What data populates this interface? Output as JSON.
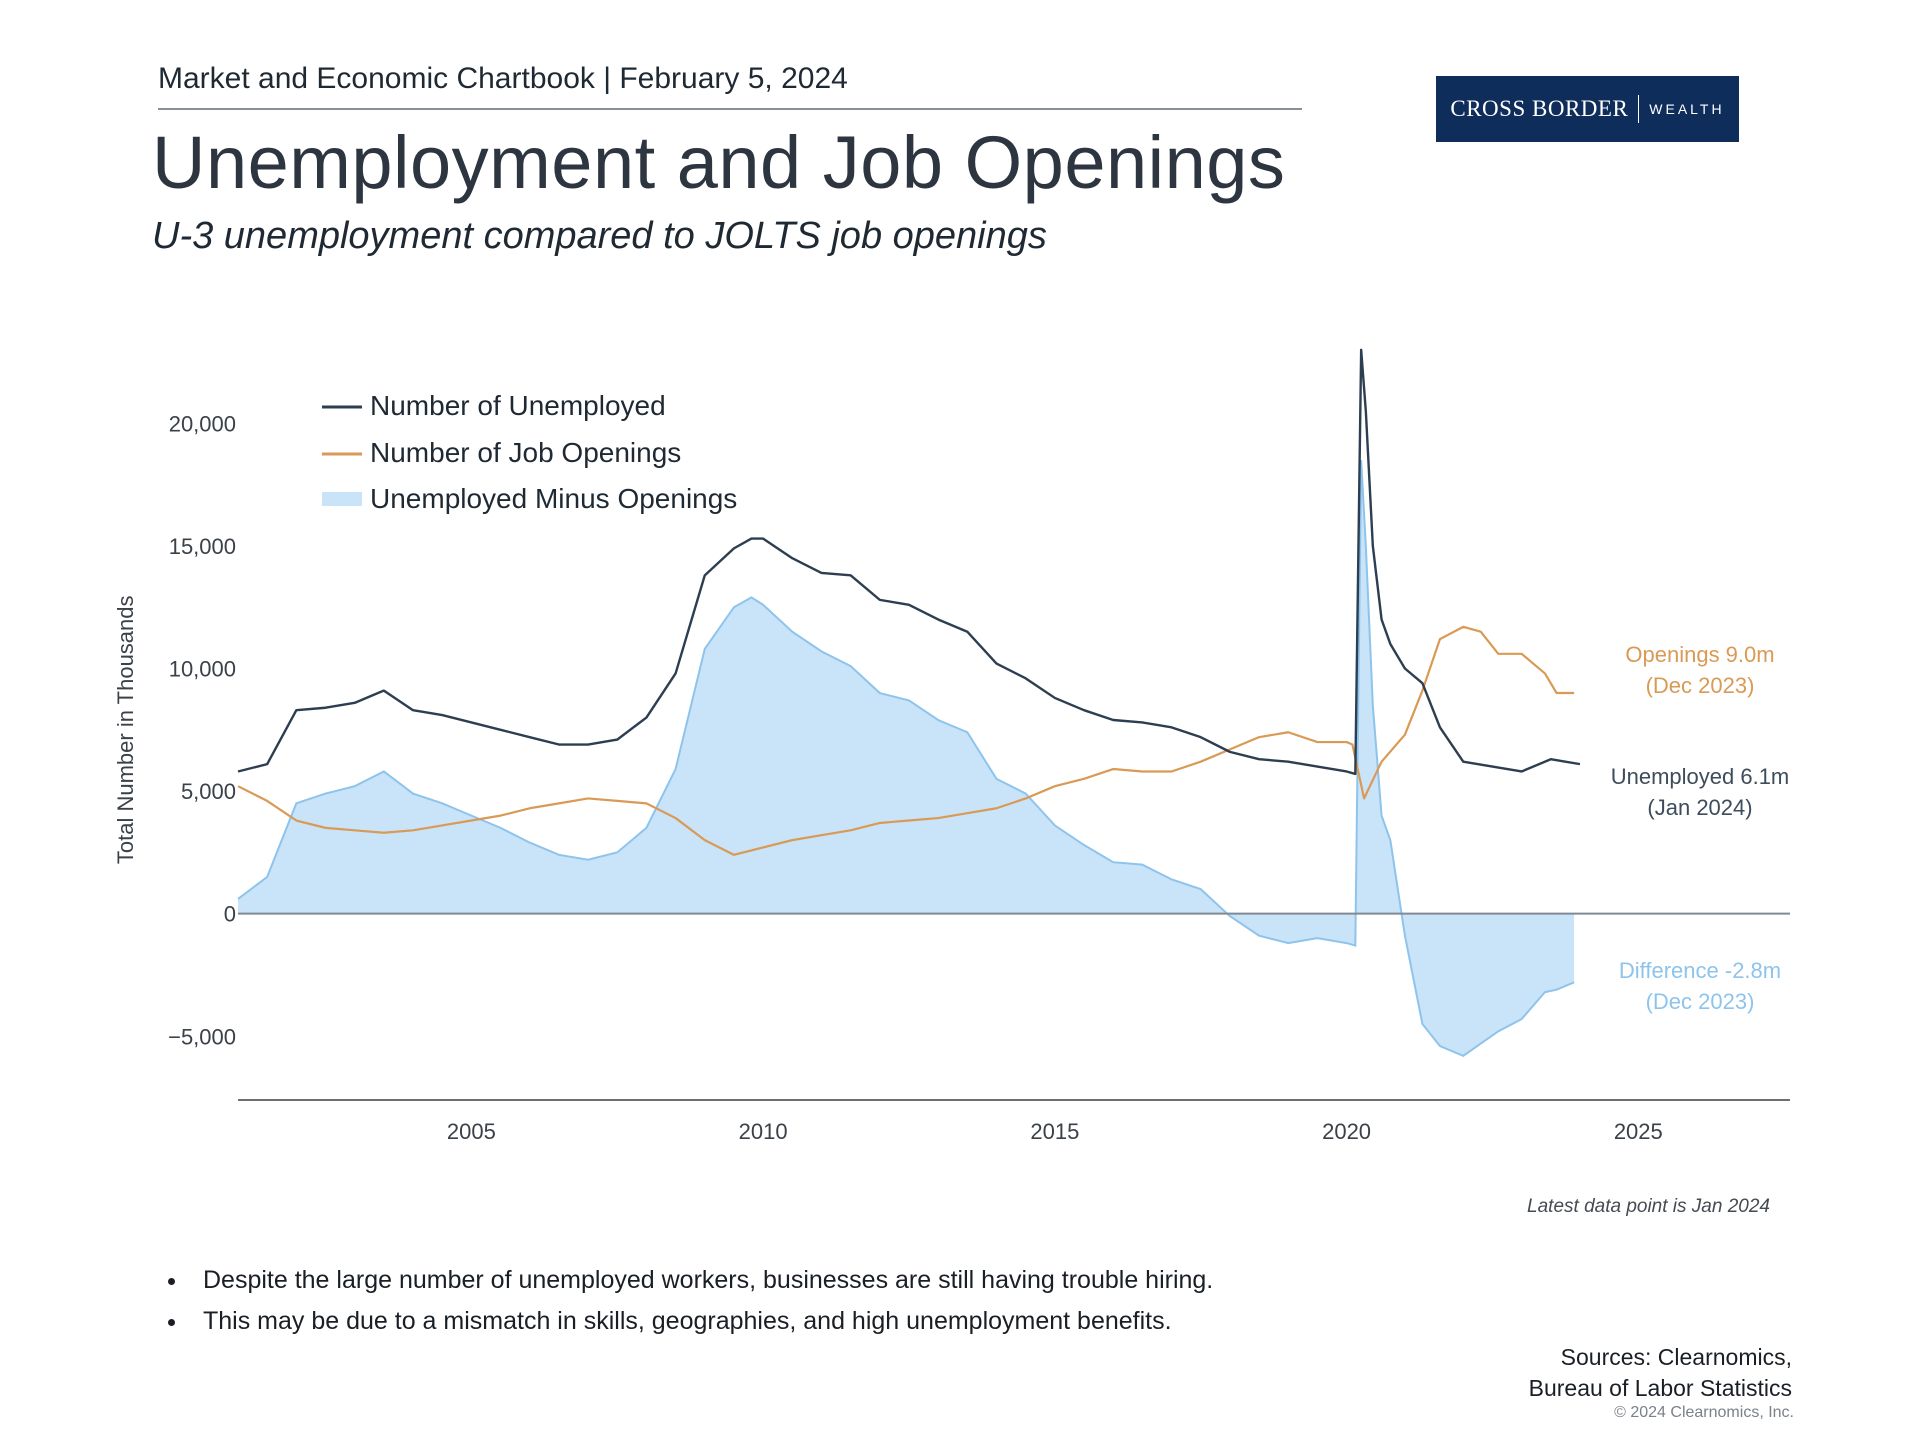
{
  "header": {
    "chartbook": "Market and Economic Chartbook | February 5, 2024",
    "logo_main": "CROSS BORDER",
    "logo_sub": "WEALTH"
  },
  "title": "Unemployment and Job Openings",
  "subtitle": "U-3 unemployment compared to JOLTS job openings",
  "colors": {
    "unemployed": "#2c3e50",
    "openings": "#d99a55",
    "difference_fill": "#c9e3f8",
    "difference_line": "#8ec4ec",
    "zero_line": "#7f8a94",
    "axis": "#3a3f45"
  },
  "chart_data": {
    "type": "line",
    "title": "",
    "ylabel": "Total Number in Thousands",
    "xlabel": "",
    "ylim": [
      -7600,
      23400
    ],
    "xlim": [
      2001.0,
      2027.6
    ],
    "yticks": [
      {
        "value": 20000,
        "label": "20,000"
      },
      {
        "value": 15000,
        "label": "15,000"
      },
      {
        "value": 10000,
        "label": "10,000"
      },
      {
        "value": 5000,
        "label": "5,000"
      },
      {
        "value": 0,
        "label": "0"
      },
      {
        "value": -5000,
        "label": "−5,000"
      }
    ],
    "xticks": [
      {
        "value": 2005,
        "label": "2005"
      },
      {
        "value": 2010,
        "label": "2010"
      },
      {
        "value": 2015,
        "label": "2015"
      },
      {
        "value": 2020,
        "label": "2020"
      },
      {
        "value": 2025,
        "label": "2025"
      }
    ],
    "legend": {
      "position": "top-left",
      "entries": [
        "Number of Unemployed",
        "Number of Job Openings",
        "Unemployed Minus Openings"
      ]
    },
    "series": [
      {
        "name": "Number of Unemployed",
        "key": "unemployed",
        "x": [
          2001.0,
          2001.5,
          2002.0,
          2002.5,
          2003.0,
          2003.5,
          2004.0,
          2004.5,
          2005.0,
          2005.5,
          2006.0,
          2006.5,
          2007.0,
          2007.5,
          2008.0,
          2008.5,
          2009.0,
          2009.5,
          2009.8,
          2010.0,
          2010.5,
          2011.0,
          2011.5,
          2012.0,
          2012.5,
          2013.0,
          2013.5,
          2014.0,
          2014.5,
          2015.0,
          2015.5,
          2016.0,
          2016.5,
          2017.0,
          2017.5,
          2018.0,
          2018.5,
          2019.0,
          2019.5,
          2020.0,
          2020.15,
          2020.25,
          2020.33,
          2020.45,
          2020.6,
          2020.75,
          2021.0,
          2021.3,
          2021.6,
          2022.0,
          2022.5,
          2023.0,
          2023.5,
          2024.0
        ],
        "values": [
          5800,
          6100,
          8300,
          8400,
          8600,
          9100,
          8300,
          8100,
          7800,
          7500,
          7200,
          6900,
          6900,
          7100,
          8000,
          9800,
          13800,
          14900,
          15300,
          15300,
          14500,
          13900,
          13800,
          12800,
          12600,
          12000,
          11500,
          10200,
          9600,
          8800,
          8300,
          7900,
          7800,
          7600,
          7200,
          6600,
          6300,
          6200,
          6000,
          5800,
          5700,
          23000,
          20500,
          15000,
          12000,
          11000,
          10000,
          9400,
          7600,
          6200,
          6000,
          5800,
          6300,
          6100
        ]
      },
      {
        "name": "Number of Job Openings",
        "key": "openings",
        "x": [
          2001.0,
          2001.5,
          2002.0,
          2002.5,
          2003.0,
          2003.5,
          2004.0,
          2004.5,
          2005.0,
          2005.5,
          2006.0,
          2006.5,
          2007.0,
          2007.5,
          2008.0,
          2008.5,
          2009.0,
          2009.5,
          2010.0,
          2010.5,
          2011.0,
          2011.5,
          2012.0,
          2012.5,
          2013.0,
          2013.5,
          2014.0,
          2014.5,
          2015.0,
          2015.5,
          2016.0,
          2016.5,
          2017.0,
          2017.5,
          2018.0,
          2018.5,
          2019.0,
          2019.5,
          2020.0,
          2020.1,
          2020.3,
          2020.6,
          2021.0,
          2021.3,
          2021.6,
          2022.0,
          2022.3,
          2022.6,
          2023.0,
          2023.4,
          2023.6,
          2023.9
        ],
        "values": [
          5200,
          4600,
          3800,
          3500,
          3400,
          3300,
          3400,
          3600,
          3800,
          4000,
          4300,
          4500,
          4700,
          4600,
          4500,
          3900,
          3000,
          2400,
          2700,
          3000,
          3200,
          3400,
          3700,
          3800,
          3900,
          4100,
          4300,
          4700,
          5200,
          5500,
          5900,
          5800,
          5800,
          6200,
          6700,
          7200,
          7400,
          7000,
          7000,
          6900,
          4700,
          6200,
          7300,
          9100,
          11200,
          11700,
          11500,
          10600,
          10600,
          9800,
          9000,
          9000
        ]
      },
      {
        "name": "Unemployed Minus Openings",
        "key": "difference",
        "x": [
          2001.0,
          2001.5,
          2002.0,
          2002.5,
          2003.0,
          2003.5,
          2004.0,
          2004.5,
          2005.0,
          2005.5,
          2006.0,
          2006.5,
          2007.0,
          2007.5,
          2008.0,
          2008.5,
          2009.0,
          2009.5,
          2009.8,
          2010.0,
          2010.5,
          2011.0,
          2011.5,
          2012.0,
          2012.5,
          2013.0,
          2013.5,
          2014.0,
          2014.5,
          2015.0,
          2015.5,
          2016.0,
          2016.5,
          2017.0,
          2017.5,
          2018.0,
          2018.5,
          2019.0,
          2019.5,
          2020.0,
          2020.15,
          2020.25,
          2020.33,
          2020.45,
          2020.6,
          2020.75,
          2021.0,
          2021.3,
          2021.6,
          2022.0,
          2022.3,
          2022.6,
          2023.0,
          2023.4,
          2023.6,
          2023.9
        ],
        "values": [
          600,
          1500,
          4500,
          4900,
          5200,
          5800,
          4900,
          4500,
          4000,
          3500,
          2900,
          2400,
          2200,
          2500,
          3500,
          5900,
          10800,
          12500,
          12900,
          12600,
          11500,
          10700,
          10100,
          9000,
          8700,
          7900,
          7400,
          5500,
          4900,
          3600,
          2800,
          2100,
          2000,
          1400,
          1000,
          -100,
          -900,
          -1200,
          -1000,
          -1200,
          -1300,
          18500,
          15000,
          8500,
          4000,
          3000,
          -900,
          -4500,
          -5400,
          -5800,
          -5300,
          -4800,
          -4300,
          -3200,
          -3100,
          -2800
        ]
      }
    ],
    "annotations": [
      {
        "key": "openings",
        "line1": "Openings 9.0m",
        "line2": "(Dec 2023)"
      },
      {
        "key": "unemployed",
        "line1": "Unemployed 6.1m",
        "line2": "(Jan 2024)"
      },
      {
        "key": "difference",
        "line1": "Difference -2.8m",
        "line2": "(Dec 2023)"
      }
    ]
  },
  "footnote": "Latest data point is Jan 2024",
  "bullets": [
    "Despite the large number of unemployed workers, businesses are still having trouble hiring.",
    "This may be due to a mismatch in skills, geographies, and high unemployment benefits."
  ],
  "sources": {
    "line1": "Sources: Clearnomics,",
    "line2": "Bureau of Labor Statistics"
  },
  "copyright": "© 2024 Clearnomics, Inc."
}
